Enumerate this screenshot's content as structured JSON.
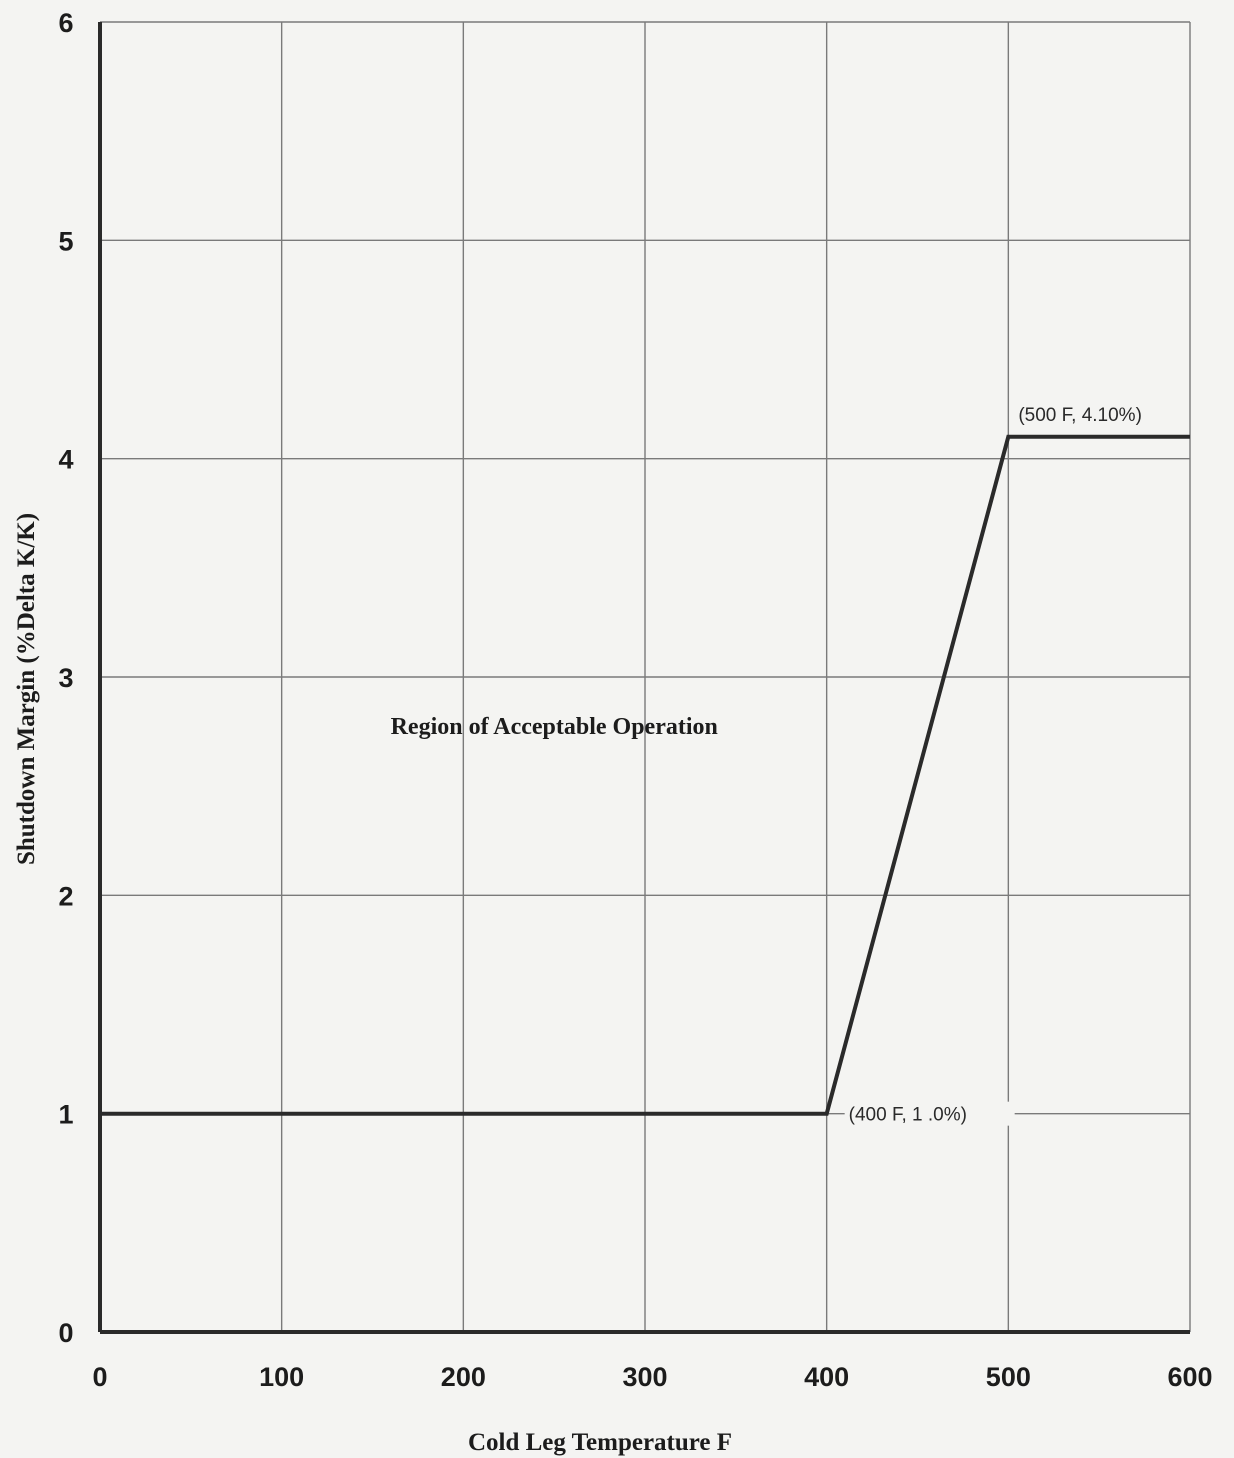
{
  "chart_data": {
    "type": "line",
    "title": "",
    "xlabel": "Cold Leg Temperature F",
    "ylabel": "Shutdown Margin (%Delta K/K)",
    "xlim": [
      0,
      600
    ],
    "ylim": [
      0,
      6
    ],
    "x_ticks": [
      "0",
      "100",
      "200",
      "300",
      "400",
      "500",
      "600"
    ],
    "y_ticks": [
      "0",
      "1",
      "2",
      "3",
      "4",
      "5",
      "6"
    ],
    "grid": true,
    "series": [
      {
        "x": [
          0,
          400,
          500,
          600
        ],
        "y": [
          1.0,
          1.0,
          4.1,
          4.1
        ]
      }
    ],
    "annotations": [
      {
        "text": "(500 F, 4.10%)",
        "x": 500,
        "y": 4.1
      },
      {
        "text": "(400 F, 1 .0%)",
        "x": 400,
        "y": 1.0
      }
    ],
    "region_label": {
      "text": "Region of Acceptable Operation",
      "x": 215,
      "y": 2.78
    },
    "colors": {
      "line": "#2a2a2a",
      "grid": "#7a7a7a",
      "axis": "#2a2a2a",
      "background": "#f4f4f2"
    }
  }
}
